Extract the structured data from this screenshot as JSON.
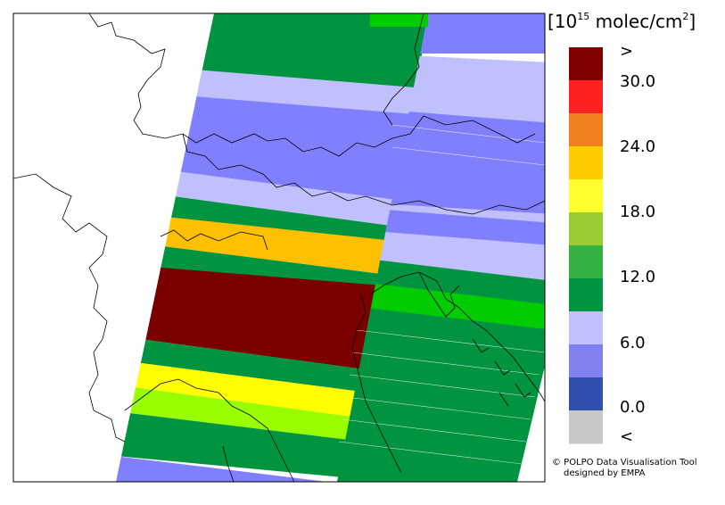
{
  "legend": {
    "unit_pre": "[10",
    "unit_exp": "15",
    "unit_mid": " molec/cm",
    "unit_sq": "2",
    "unit_post": "]",
    "top_marker": ">",
    "bottom_marker": "<",
    "ticks": [
      "30.0",
      "24.0",
      "18.0",
      "12.0",
      "6.0",
      "0.0"
    ],
    "colors": [
      "#800000",
      "#ff2020",
      "#f08020",
      "#ffcc00",
      "#ffff30",
      "#99cc33",
      "#33b040",
      "#009440",
      "#c0c0ff",
      "#8080f0",
      "#3050b0",
      "#c8c8c8"
    ]
  },
  "credit": {
    "line1": "© POLPO Data Visualisation Tool",
    "line2": "designed by EMPA"
  },
  "swath_colors": {
    "dark_red": "#7a0000",
    "orange": "#ffc000",
    "yellow": "#ffff00",
    "yellow_green": "#99ff00",
    "green": "#009440",
    "bright_green": "#00cc00",
    "light_lavender": "#c0c0ff",
    "lavender": "#8080ff"
  }
}
